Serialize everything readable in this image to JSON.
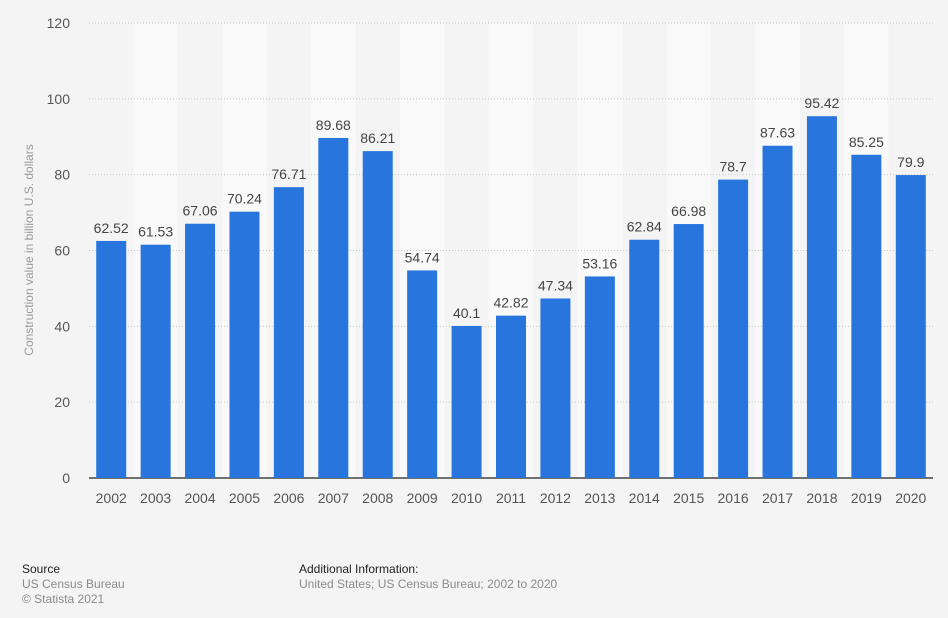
{
  "chart_data": {
    "type": "bar",
    "title": "",
    "xlabel": "",
    "ylabel": "Construction value in billion U.S. dollars",
    "ylim": [
      0,
      120
    ],
    "yticks": [
      0,
      20,
      40,
      60,
      80,
      100,
      120
    ],
    "grid": true,
    "categories": [
      "2002",
      "2003",
      "2004",
      "2005",
      "2006",
      "2007",
      "2008",
      "2009",
      "2010",
      "2011",
      "2012",
      "2013",
      "2014",
      "2015",
      "2016",
      "2017",
      "2018",
      "2019",
      "2020"
    ],
    "values": [
      62.52,
      61.53,
      67.06,
      70.24,
      76.71,
      89.68,
      86.21,
      54.74,
      40.1,
      42.82,
      47.34,
      53.16,
      62.84,
      66.98,
      78.7,
      87.63,
      95.42,
      85.25,
      79.9
    ],
    "data_labels": [
      "62.52",
      "61.53",
      "67.06",
      "70.24",
      "76.71",
      "89.68",
      "86.21",
      "54.74",
      "40.1",
      "42.82",
      "47.34",
      "53.16",
      "62.84",
      "66.98",
      "78.7",
      "87.63",
      "95.42",
      "85.25",
      "79.9"
    ],
    "bar_color": "#2876dd"
  },
  "footer": {
    "source_title": "Source",
    "source_name": "US Census Bureau",
    "copyright": "© Statista 2021",
    "info_title": "Additional Information:",
    "info_text": "United States; US Census Bureau; 2002 to 2020"
  }
}
